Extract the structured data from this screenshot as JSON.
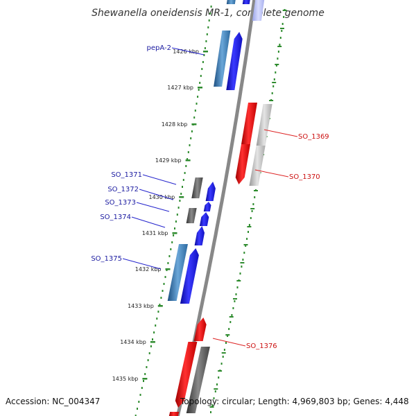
{
  "title": "Shewanella oneidensis MR-1, complete genome",
  "accession": "Accession: NC_004347",
  "topology": "Topology: circular; Length: 4,969,803 bp; Genes: 4,448",
  "colors": {
    "forward_cds": "#1a1aee",
    "forward_gene": "#4a8fc4",
    "reverse_cds": "#ee1a1a",
    "reverse_gene_light": "#bbbbbb",
    "reverse_gene_dark": "#777777",
    "backbone": "#888888",
    "tick": "#2e8b2e",
    "forward_label": "#1a1aa0",
    "reverse_label": "#cc1111"
  },
  "ticks": [
    {
      "label": "1426 kbp"
    },
    {
      "label": "1427 kbp"
    },
    {
      "label": "1428 kbp"
    },
    {
      "label": "1429 kbp"
    },
    {
      "label": "1430 kbp"
    },
    {
      "label": "1431 kbp"
    },
    {
      "label": "1432 kbp"
    },
    {
      "label": "1433 kbp"
    },
    {
      "label": "1434 kbp"
    },
    {
      "label": "1435 kbp"
    }
  ],
  "genes_forward": [
    {
      "label": "pepA-2"
    },
    {
      "label": "SO_1371"
    },
    {
      "label": "SO_1372"
    },
    {
      "label": "SO_1373"
    },
    {
      "label": "SO_1374"
    },
    {
      "label": "SO_1375"
    }
  ],
  "genes_reverse": [
    {
      "label": "SO_1369"
    },
    {
      "label": "SO_1370"
    },
    {
      "label": "SO_1376"
    }
  ]
}
